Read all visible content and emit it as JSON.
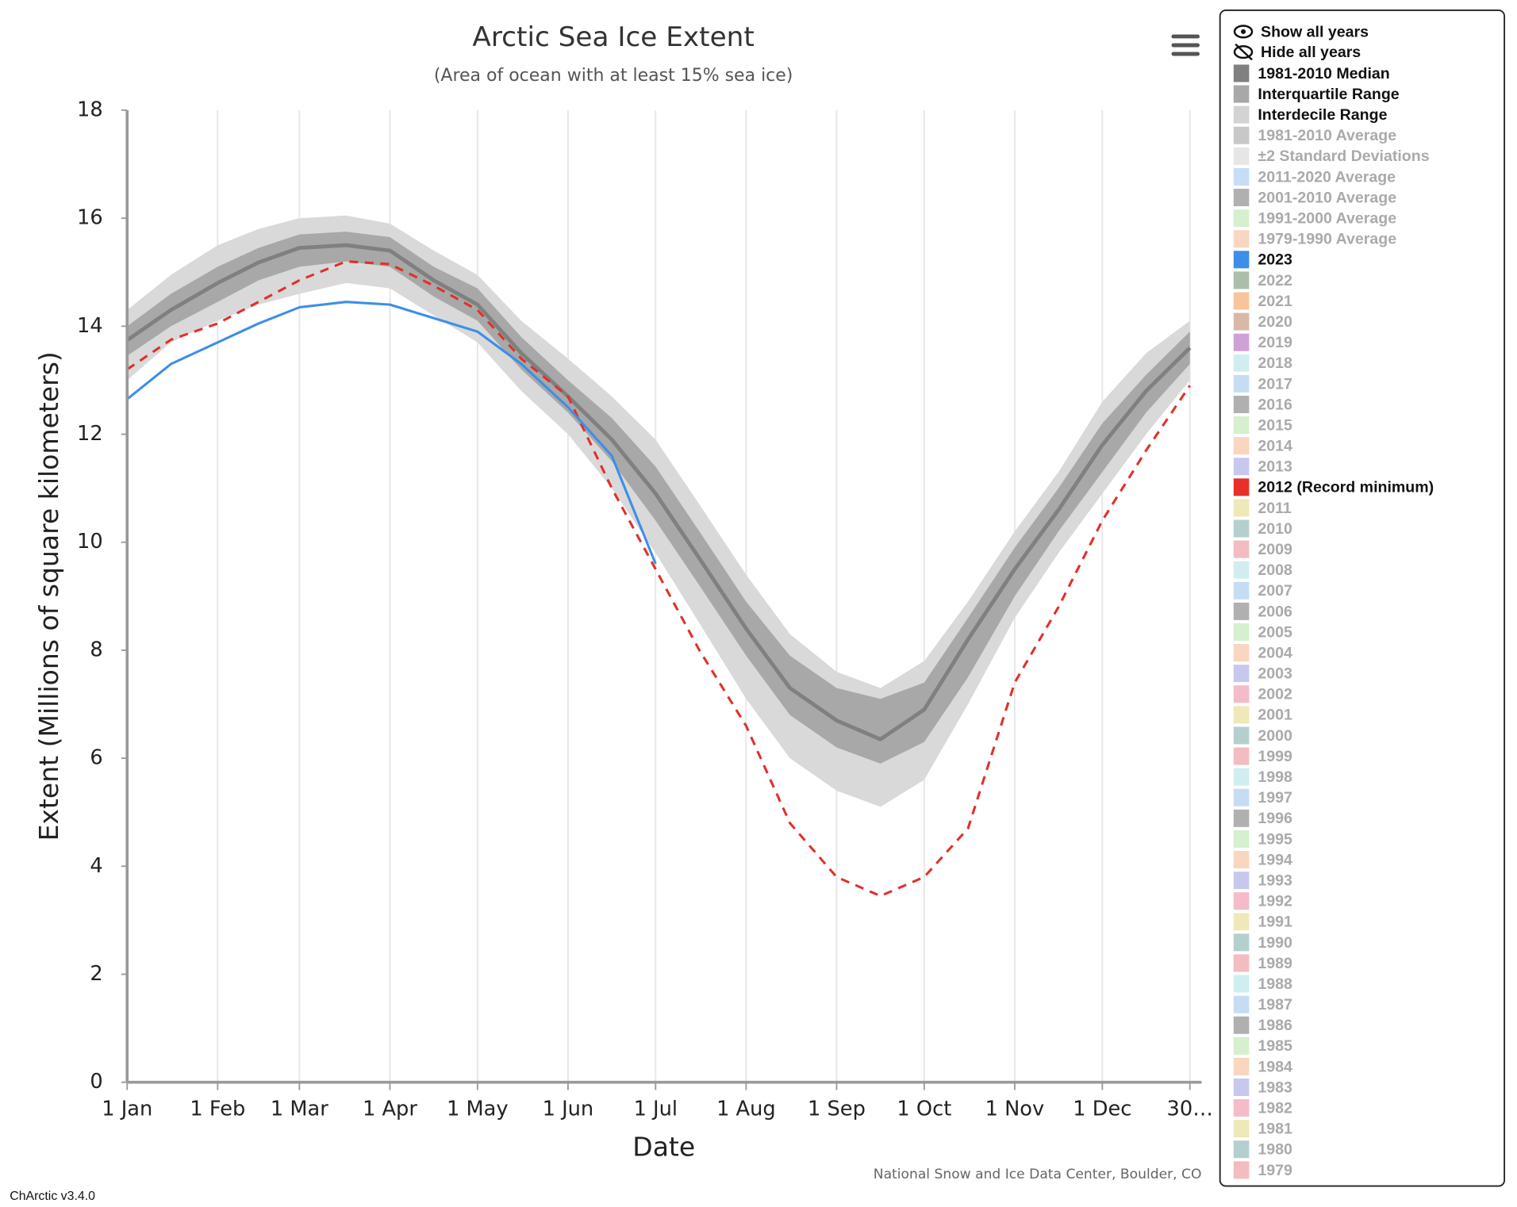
{
  "chart_data": {
    "type": "line",
    "title": "Arctic Sea Ice Extent",
    "subtitle": "(Area of ocean with at least 15% sea ice)",
    "x_label": "Date",
    "y_label": "Extent (Millions of square kilometers)",
    "credit": "National Snow and Ice Data Center, Boulder, CO",
    "grid": true,
    "x": [
      0,
      15,
      31,
      45,
      59,
      75,
      90,
      105,
      120,
      135,
      151,
      166,
      181,
      196,
      212,
      227,
      243,
      258,
      273,
      288,
      304,
      319,
      334,
      349,
      364
    ],
    "xlim": [
      0,
      368
    ],
    "xticks": [
      {
        "value": 0,
        "label": "1 Jan"
      },
      {
        "value": 31,
        "label": "1 Feb"
      },
      {
        "value": 59,
        "label": "1 Mar"
      },
      {
        "value": 90,
        "label": "1 Apr"
      },
      {
        "value": 120,
        "label": "1 May"
      },
      {
        "value": 151,
        "label": "1 Jun"
      },
      {
        "value": 181,
        "label": "1 Jul"
      },
      {
        "value": 212,
        "label": "1 Aug"
      },
      {
        "value": 243,
        "label": "1 Sep"
      },
      {
        "value": 273,
        "label": "1 Oct"
      },
      {
        "value": 304,
        "label": "1 Nov"
      },
      {
        "value": 334,
        "label": "1 Dec"
      },
      {
        "value": 364,
        "label": "30…"
      }
    ],
    "ylim": [
      0,
      18
    ],
    "yticks": [
      0,
      2,
      4,
      6,
      8,
      10,
      12,
      14,
      16,
      18
    ],
    "series": [
      {
        "style": "band",
        "color": "#d9d9d9",
        "upper": [
          14.3,
          14.95,
          15.5,
          15.8,
          16.0,
          16.05,
          15.9,
          15.4,
          14.95,
          14.1,
          13.4,
          12.7,
          11.9,
          10.7,
          9.4,
          8.3,
          7.6,
          7.3,
          7.8,
          8.9,
          10.2,
          11.3,
          12.6,
          13.5,
          14.1
        ],
        "lower": [
          13.0,
          13.7,
          14.1,
          14.4,
          14.6,
          14.8,
          14.7,
          14.2,
          13.7,
          12.8,
          12.0,
          11.0,
          9.8,
          8.5,
          7.1,
          6.0,
          5.4,
          5.1,
          5.6,
          7.0,
          8.6,
          9.8,
          10.9,
          12.0,
          13.0
        ]
      },
      {
        "style": "band",
        "color": "#a8a8a8",
        "upper": [
          14.0,
          14.6,
          15.1,
          15.45,
          15.7,
          15.75,
          15.65,
          15.1,
          14.7,
          13.8,
          13.0,
          12.3,
          11.4,
          10.2,
          8.9,
          7.9,
          7.3,
          7.1,
          7.4,
          8.6,
          9.9,
          11.0,
          12.2,
          13.1,
          13.9
        ],
        "lower": [
          13.45,
          14.0,
          14.45,
          14.85,
          15.1,
          15.2,
          15.1,
          14.55,
          14.1,
          13.2,
          12.4,
          11.5,
          10.4,
          9.2,
          7.9,
          6.8,
          6.2,
          5.9,
          6.3,
          7.5,
          9.0,
          10.2,
          11.3,
          12.4,
          13.3
        ]
      },
      {
        "style": "solid",
        "color": "#808080",
        "width": 4,
        "values": [
          13.74,
          14.3,
          14.8,
          15.18,
          15.45,
          15.5,
          15.4,
          14.85,
          14.4,
          13.5,
          12.7,
          11.9,
          10.9,
          9.7,
          8.4,
          7.3,
          6.7,
          6.35,
          6.9,
          8.2,
          9.5,
          10.6,
          11.8,
          12.8,
          13.6
        ]
      },
      {
        "style": "dashed",
        "color": "#e0302a",
        "width": 2.5,
        "values": [
          13.2,
          13.75,
          14.05,
          14.45,
          14.85,
          15.2,
          15.15,
          14.75,
          14.3,
          13.4,
          12.7,
          11.0,
          9.5,
          8.0,
          6.6,
          4.8,
          3.8,
          3.45,
          3.8,
          4.7,
          7.4,
          8.8,
          10.4,
          11.7,
          12.9
        ]
      },
      {
        "style": "solid",
        "color": "#3d8ee8",
        "width": 2.5,
        "values": [
          12.65,
          13.3,
          13.7,
          14.05,
          14.35,
          14.45,
          14.4,
          14.15,
          13.9,
          13.3,
          12.5,
          11.6,
          9.6,
          null,
          null,
          null,
          null,
          null,
          null,
          null,
          null,
          null,
          null,
          null,
          null
        ]
      }
    ],
    "show_all": "Show all years",
    "hide_all": "Hide all years",
    "legend": [
      {
        "name": "1981-2010 Median",
        "color": "#808080",
        "active": true
      },
      {
        "name": "Interquartile Range",
        "color": "#a8a8a8",
        "active": true
      },
      {
        "name": "Interdecile Range",
        "color": "#d3d3d3",
        "active": true
      },
      {
        "name": "1981-2010 Average",
        "color": "#c8c8c8",
        "active": false
      },
      {
        "name": "±2 Standard Deviations",
        "color": "#e6e6e6",
        "active": false
      },
      {
        "name": "2011-2020 Average",
        "color": "#c6ddf5",
        "active": false
      },
      {
        "name": "2001-2010 Average",
        "color": "#b0b0b0",
        "active": false
      },
      {
        "name": "1991-2000 Average",
        "color": "#d4f0cc",
        "active": false
      },
      {
        "name": "1979-1990 Average",
        "color": "#f8d6bf",
        "active": false
      },
      {
        "name": "2023",
        "color": "#3d8ee8",
        "active": true
      },
      {
        "name": "2022",
        "color": "#a9bfa9",
        "active": false
      },
      {
        "name": "2021",
        "color": "#f8c49a",
        "active": false
      },
      {
        "name": "2020",
        "color": "#d9b8a8",
        "active": false
      },
      {
        "name": "2019",
        "color": "#d0a0d8",
        "active": false
      },
      {
        "name": "2018",
        "color": "#d0eef0",
        "active": false
      },
      {
        "name": "2017",
        "color": "#c6dcf2",
        "active": false
      },
      {
        "name": "2016",
        "color": "#b0b0b0",
        "active": false
      },
      {
        "name": "2015",
        "color": "#d4f0cc",
        "active": false
      },
      {
        "name": "2014",
        "color": "#f8d6bf",
        "active": false
      },
      {
        "name": "2013",
        "color": "#c8c8ee",
        "active": false
      },
      {
        "name": "2012 (Record minimum)",
        "color": "#e8302a",
        "active": true
      },
      {
        "name": "2011",
        "color": "#efe8b8",
        "active": false
      },
      {
        "name": "2010",
        "color": "#b5cfcf",
        "active": false
      },
      {
        "name": "2009",
        "color": "#f3bcc0",
        "active": false
      },
      {
        "name": "2008",
        "color": "#d0eef0",
        "active": false
      },
      {
        "name": "2007",
        "color": "#c6dcf2",
        "active": false
      },
      {
        "name": "2006",
        "color": "#b0b0b0",
        "active": false
      },
      {
        "name": "2005",
        "color": "#d4f0cc",
        "active": false
      },
      {
        "name": "2004",
        "color": "#f8d6bf",
        "active": false
      },
      {
        "name": "2003",
        "color": "#c8c8ee",
        "active": false
      },
      {
        "name": "2002",
        "color": "#f3bcc8",
        "active": false
      },
      {
        "name": "2001",
        "color": "#efe8b8",
        "active": false
      },
      {
        "name": "2000",
        "color": "#b5cfcf",
        "active": false
      },
      {
        "name": "1999",
        "color": "#f3bcc0",
        "active": false
      },
      {
        "name": "1998",
        "color": "#d0eef0",
        "active": false
      },
      {
        "name": "1997",
        "color": "#c6dcf2",
        "active": false
      },
      {
        "name": "1996",
        "color": "#b0b0b0",
        "active": false
      },
      {
        "name": "1995",
        "color": "#d4f0cc",
        "active": false
      },
      {
        "name": "1994",
        "color": "#f8d6bf",
        "active": false
      },
      {
        "name": "1993",
        "color": "#c8c8ee",
        "active": false
      },
      {
        "name": "1992",
        "color": "#f3bcc8",
        "active": false
      },
      {
        "name": "1991",
        "color": "#efe8b8",
        "active": false
      },
      {
        "name": "1990",
        "color": "#b5cfcf",
        "active": false
      },
      {
        "name": "1989",
        "color": "#f3bcc0",
        "active": false
      },
      {
        "name": "1988",
        "color": "#d0eef0",
        "active": false
      },
      {
        "name": "1987",
        "color": "#c6dcf2",
        "active": false
      },
      {
        "name": "1986",
        "color": "#b0b0b0",
        "active": false
      },
      {
        "name": "1985",
        "color": "#d4f0cc",
        "active": false
      },
      {
        "name": "1984",
        "color": "#f8d6bf",
        "active": false
      },
      {
        "name": "1983",
        "color": "#c8c8ee",
        "active": false
      },
      {
        "name": "1982",
        "color": "#f3bcc8",
        "active": false
      },
      {
        "name": "1981",
        "color": "#efe8b8",
        "active": false
      },
      {
        "name": "1980",
        "color": "#b5cfcf",
        "active": false
      },
      {
        "name": "1979",
        "color": "#f3bcc0",
        "active": false
      }
    ]
  },
  "version": "ChArctic v3.4.0"
}
